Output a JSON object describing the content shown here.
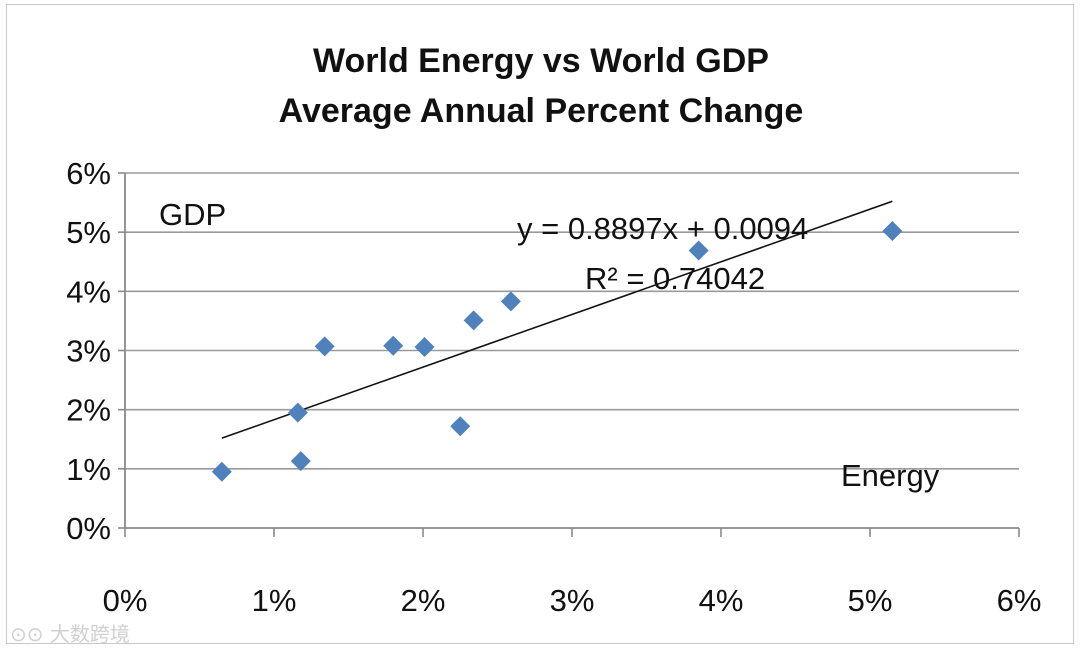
{
  "chart_data": {
    "type": "scatter",
    "title_lines": [
      "World Energy vs World GDP",
      "Average Annual Percent Change"
    ],
    "xlabel": "Energy",
    "ylabel": "GDP",
    "xlim": [
      0,
      0.06
    ],
    "ylim": [
      0,
      0.06
    ],
    "x_ticks": [
      "0%",
      "1%",
      "2%",
      "3%",
      "4%",
      "5%",
      "6%"
    ],
    "y_ticks": [
      "0%",
      "1%",
      "2%",
      "3%",
      "4%",
      "5%",
      "6%"
    ],
    "grid": "horizontal",
    "marker": "diamond",
    "series_color": "#4f81bd",
    "points": [
      {
        "x": 0.0065,
        "y": 0.0095
      },
      {
        "x": 0.0116,
        "y": 0.0195
      },
      {
        "x": 0.0118,
        "y": 0.0113
      },
      {
        "x": 0.0134,
        "y": 0.0307
      },
      {
        "x": 0.018,
        "y": 0.0308
      },
      {
        "x": 0.0201,
        "y": 0.0306
      },
      {
        "x": 0.0225,
        "y": 0.0172
      },
      {
        "x": 0.0234,
        "y": 0.0351
      },
      {
        "x": 0.0259,
        "y": 0.0383
      },
      {
        "x": 0.0385,
        "y": 0.0469
      },
      {
        "x": 0.0515,
        "y": 0.0502
      }
    ],
    "trendline": {
      "slope": 0.8897,
      "intercept": 0.0094,
      "x_range": [
        0.0065,
        0.0515
      ],
      "equation": "y = 0.8897x + 0.0094",
      "r_squared": "R² = 0.74042"
    }
  },
  "watermark": "大数跨境"
}
